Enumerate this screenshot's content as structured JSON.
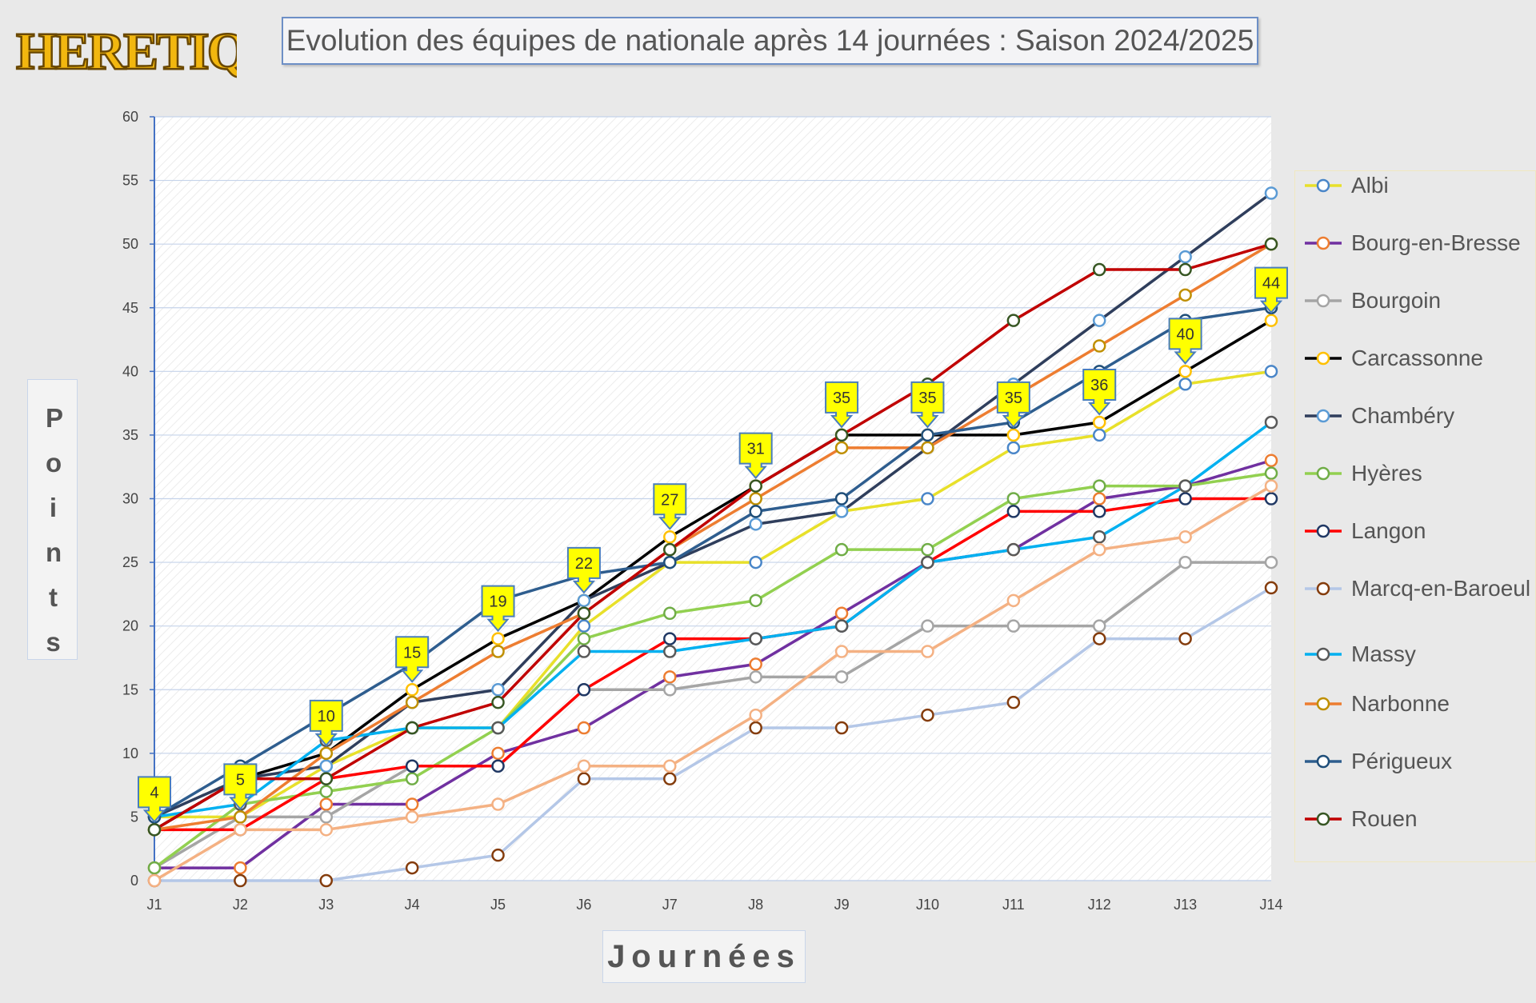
{
  "logo_text": "HERETIQUES",
  "chart_data": {
    "type": "line",
    "title": "Evolution des équipes de nationale après 14 journées : Saison 2024/2025",
    "xlabel": "Journées",
    "ylabel": "Points",
    "categories": [
      "J1",
      "J2",
      "J3",
      "J4",
      "J5",
      "J6",
      "J7",
      "J8",
      "J9",
      "J10",
      "J11",
      "J12",
      "J13",
      "J14"
    ],
    "ylim": [
      0,
      60
    ],
    "yticks": [
      0,
      5,
      10,
      15,
      20,
      25,
      30,
      35,
      40,
      45,
      50,
      55,
      60
    ],
    "series": [
      {
        "name": "Albi",
        "line_color": "#e8e02a",
        "marker_color": "#4a86c8",
        "values": [
          5,
          5,
          9,
          12,
          12,
          20,
          25,
          25,
          29,
          30,
          34,
          35,
          39,
          40
        ]
      },
      {
        "name": "Bourg-en-Bresse",
        "line_color": "#7030a0",
        "marker_color": "#ed7d31",
        "values": [
          1,
          1,
          6,
          6,
          10,
          12,
          16,
          17,
          21,
          25,
          26,
          30,
          31,
          33
        ]
      },
      {
        "name": "Bourgoin",
        "line_color": "#a5a5a5",
        "marker_color": "#a5a5a5",
        "values": [
          1,
          5,
          5,
          9,
          9,
          15,
          15,
          16,
          16,
          20,
          20,
          20,
          25,
          25
        ]
      },
      {
        "name": "Carcassonne",
        "line_color": "#000000",
        "marker_color": "#ffc000",
        "values": [
          4,
          8,
          10,
          15,
          19,
          22,
          27,
          31,
          35,
          35,
          35,
          36,
          40,
          44
        ]
      },
      {
        "name": "Chambéry",
        "line_color": "#2f3e5c",
        "marker_color": "#5b9bd5",
        "values": [
          5,
          8,
          9,
          14,
          15,
          22,
          25,
          28,
          29,
          34,
          39,
          44,
          49,
          54
        ]
      },
      {
        "name": "Hyères",
        "line_color": "#92d050",
        "marker_color": "#70ad47",
        "values": [
          1,
          6,
          7,
          8,
          12,
          19,
          21,
          22,
          26,
          26,
          30,
          31,
          31,
          32
        ]
      },
      {
        "name": "Langon",
        "line_color": "#ff0000",
        "marker_color": "#203864",
        "values": [
          4,
          4,
          8,
          9,
          9,
          15,
          19,
          19,
          20,
          25,
          29,
          29,
          30,
          30
        ]
      },
      {
        "name": "Marcq-en-Baroeul",
        "line_color": "#b4c7e7",
        "marker_color": "#843c0c",
        "values": [
          0,
          0,
          0,
          1,
          2,
          8,
          8,
          12,
          12,
          13,
          14,
          19,
          19,
          23
        ]
      },
      {
        "name": "Massy",
        "line_color": "#00b0f0",
        "marker_color": "#595959",
        "values": [
          5,
          6,
          11,
          12,
          12,
          18,
          18,
          19,
          20,
          25,
          26,
          27,
          31,
          36
        ]
      },
      {
        "name": "Narbonne",
        "line_color": "#ed7d31",
        "marker_color": "#bf8f00",
        "values": [
          4,
          5,
          10,
          14,
          18,
          21,
          26,
          30,
          34,
          34,
          38,
          42,
          46,
          50
        ]
      },
      {
        "name": "Périgueux",
        "line_color": "#2e5d8e",
        "marker_color": "#1f4e79",
        "values": [
          5,
          9,
          13,
          17,
          22,
          24,
          25,
          29,
          30,
          35,
          36,
          40,
          44,
          45
        ]
      },
      {
        "name": "Rouen",
        "line_color": "#c00000",
        "marker_color": "#375623",
        "values": [
          4,
          8,
          8,
          12,
          14,
          21,
          26,
          31,
          35,
          39,
          44,
          48,
          48,
          50
        ]
      },
      {
        "name": "",
        "line_color": "#f4b183",
        "marker_color": "#f4b183",
        "values": [
          0,
          4,
          4,
          5,
          6,
          9,
          9,
          13,
          18,
          18,
          22,
          26,
          27,
          31
        ]
      }
    ],
    "leader_callouts": [
      "4",
      "5",
      "10",
      "15",
      "19",
      "22",
      "27",
      "31",
      "35",
      "35",
      "35",
      "36",
      "40",
      "44"
    ],
    "legend_position": "right"
  }
}
